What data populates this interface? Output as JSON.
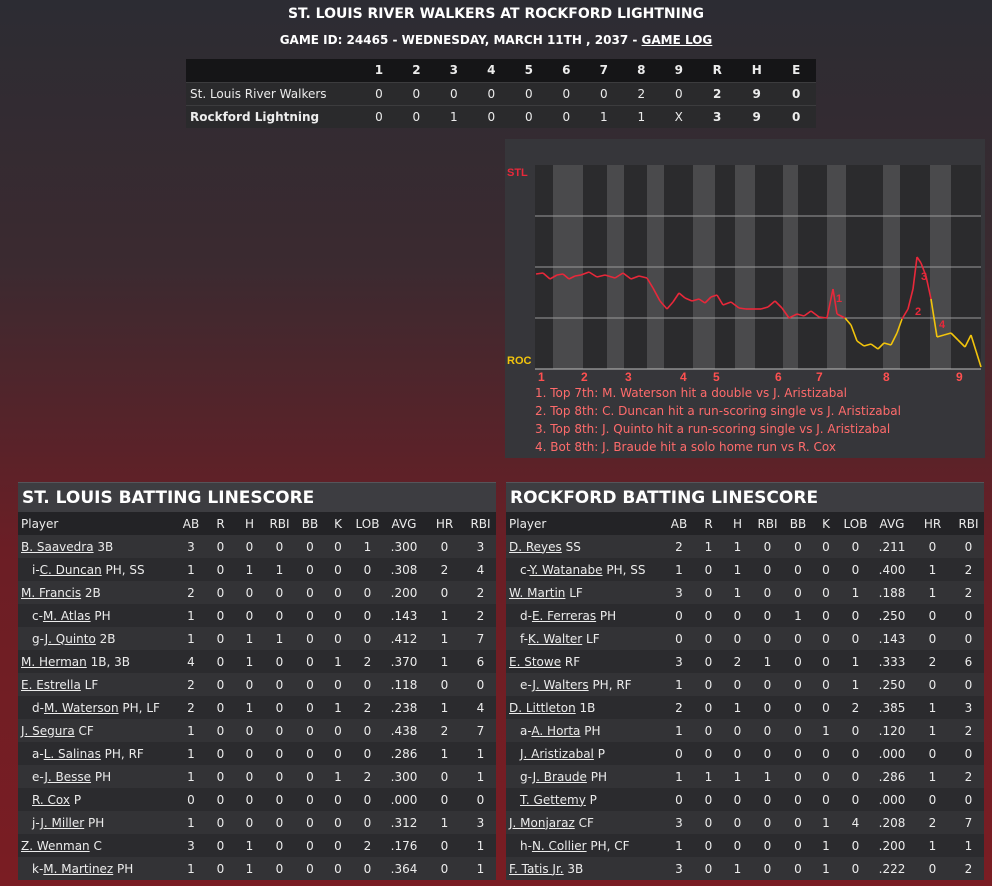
{
  "header": {
    "title": "ST. LOUIS RIVER WALKERS AT ROCKFORD LIGHTNING",
    "subtitle": "GAME ID: 24465 - WEDNESDAY, MARCH 11TH , 2037 -",
    "game_log_link": "GAME LOG"
  },
  "linescore": {
    "columns": [
      "1",
      "2",
      "3",
      "4",
      "5",
      "6",
      "7",
      "8",
      "9",
      "R",
      "H",
      "E"
    ],
    "rows": [
      {
        "team": "St. Louis River Walkers",
        "innings": [
          "0",
          "0",
          "0",
          "0",
          "0",
          "0",
          "0",
          "2",
          "0"
        ],
        "R": "2",
        "H": "9",
        "E": "0"
      },
      {
        "team": "Rockford Lightning",
        "innings": [
          "0",
          "0",
          "1",
          "0",
          "0",
          "0",
          "1",
          "1",
          "X"
        ],
        "R": "3",
        "H": "9",
        "E": "0"
      }
    ]
  },
  "win_prob": {
    "top_label": "STL",
    "bottom_label": "ROC",
    "innings": [
      "1",
      "2",
      "3",
      "4",
      "5",
      "6",
      "7",
      "8",
      "9"
    ],
    "markers": [
      "1",
      "2",
      "3",
      "4"
    ],
    "notes": [
      "1. Top 7th: M. Waterson hit a double vs J. Aristizabal",
      "2. Top 8th: C. Duncan hit a run-scoring single vs J. Aristizabal",
      "3. Top 8th: J. Quinto hit a run-scoring single vs J. Aristizabal",
      "4. Bot 8th: J. Braude hit a solo home run vs R. Cox"
    ]
  },
  "batting_columns": [
    "Player",
    "AB",
    "R",
    "H",
    "RBI",
    "BB",
    "K",
    "LOB",
    "AVG",
    "HR",
    "RBI"
  ],
  "stl_batting": {
    "title": "ST. LOUIS BATTING LINESCORE",
    "rows": [
      {
        "prefix": "",
        "name": "B. Saavedra",
        "pos": "3B",
        "sub": false,
        "stats": [
          "3",
          "0",
          "0",
          "0",
          "0",
          "0",
          "1",
          ".300",
          "0",
          "3"
        ]
      },
      {
        "prefix": "i-",
        "name": "C. Duncan",
        "pos": "PH, SS",
        "sub": true,
        "stats": [
          "1",
          "0",
          "1",
          "1",
          "0",
          "0",
          "0",
          ".308",
          "2",
          "4"
        ]
      },
      {
        "prefix": "",
        "name": "M. Francis",
        "pos": "2B",
        "sub": false,
        "stats": [
          "2",
          "0",
          "0",
          "0",
          "0",
          "0",
          "0",
          ".200",
          "0",
          "2"
        ]
      },
      {
        "prefix": "c-",
        "name": "M. Atlas",
        "pos": "PH",
        "sub": true,
        "stats": [
          "1",
          "0",
          "0",
          "0",
          "0",
          "0",
          "0",
          ".143",
          "1",
          "2"
        ]
      },
      {
        "prefix": "g-",
        "name": "J. Quinto",
        "pos": "2B",
        "sub": true,
        "stats": [
          "1",
          "0",
          "1",
          "1",
          "0",
          "0",
          "0",
          ".412",
          "1",
          "7"
        ]
      },
      {
        "prefix": "",
        "name": "M. Herman",
        "pos": "1B, 3B",
        "sub": false,
        "stats": [
          "4",
          "0",
          "1",
          "0",
          "0",
          "1",
          "2",
          ".370",
          "1",
          "6"
        ]
      },
      {
        "prefix": "",
        "name": "E. Estrella",
        "pos": "LF",
        "sub": false,
        "stats": [
          "2",
          "0",
          "0",
          "0",
          "0",
          "0",
          "0",
          ".118",
          "0",
          "0"
        ]
      },
      {
        "prefix": "d-",
        "name": "M. Waterson",
        "pos": "PH, LF",
        "sub": true,
        "stats": [
          "2",
          "0",
          "1",
          "0",
          "0",
          "1",
          "2",
          ".238",
          "1",
          "4"
        ]
      },
      {
        "prefix": "",
        "name": "J. Segura",
        "pos": "CF",
        "sub": false,
        "stats": [
          "1",
          "0",
          "0",
          "0",
          "0",
          "0",
          "0",
          ".438",
          "2",
          "7"
        ]
      },
      {
        "prefix": "a-",
        "name": "L. Salinas",
        "pos": "PH, RF",
        "sub": true,
        "stats": [
          "1",
          "0",
          "0",
          "0",
          "0",
          "0",
          "0",
          ".286",
          "1",
          "1"
        ]
      },
      {
        "prefix": "e-",
        "name": "J. Besse",
        "pos": "PH",
        "sub": true,
        "stats": [
          "1",
          "0",
          "0",
          "0",
          "0",
          "1",
          "2",
          ".300",
          "0",
          "1"
        ]
      },
      {
        "prefix": "",
        "name": "R. Cox",
        "pos": "P",
        "sub": true,
        "stats": [
          "0",
          "0",
          "0",
          "0",
          "0",
          "0",
          "0",
          ".000",
          "0",
          "0"
        ]
      },
      {
        "prefix": "j-",
        "name": "J. Miller",
        "pos": "PH",
        "sub": true,
        "stats": [
          "1",
          "0",
          "0",
          "0",
          "0",
          "0",
          "0",
          ".312",
          "1",
          "3"
        ]
      },
      {
        "prefix": "",
        "name": "Z. Wenman",
        "pos": "C",
        "sub": false,
        "stats": [
          "3",
          "0",
          "1",
          "0",
          "0",
          "0",
          "2",
          ".176",
          "0",
          "1"
        ]
      },
      {
        "prefix": "k-",
        "name": "M. Martinez",
        "pos": "PH",
        "sub": true,
        "stats": [
          "1",
          "0",
          "1",
          "0",
          "0",
          "0",
          "0",
          ".364",
          "0",
          "1"
        ]
      }
    ]
  },
  "roc_batting": {
    "title": "ROCKFORD BATTING LINESCORE",
    "rows": [
      {
        "prefix": "",
        "name": "D. Reyes",
        "pos": "SS",
        "sub": false,
        "stats": [
          "2",
          "1",
          "1",
          "0",
          "0",
          "0",
          "0",
          ".211",
          "0",
          "0"
        ]
      },
      {
        "prefix": "c-",
        "name": "Y. Watanabe",
        "pos": "PH, SS",
        "sub": true,
        "stats": [
          "1",
          "0",
          "1",
          "0",
          "0",
          "0",
          "0",
          ".400",
          "1",
          "2"
        ]
      },
      {
        "prefix": "",
        "name": "W. Martin",
        "pos": "LF",
        "sub": false,
        "stats": [
          "3",
          "0",
          "1",
          "0",
          "0",
          "0",
          "1",
          ".188",
          "1",
          "2"
        ]
      },
      {
        "prefix": "d-",
        "name": "E. Ferreras",
        "pos": "PH",
        "sub": true,
        "stats": [
          "0",
          "0",
          "0",
          "0",
          "1",
          "0",
          "0",
          ".250",
          "0",
          "0"
        ]
      },
      {
        "prefix": "f-",
        "name": "K. Walter",
        "pos": "LF",
        "sub": true,
        "stats": [
          "0",
          "0",
          "0",
          "0",
          "0",
          "0",
          "0",
          ".143",
          "0",
          "0"
        ]
      },
      {
        "prefix": "",
        "name": "E. Stowe",
        "pos": "RF",
        "sub": false,
        "stats": [
          "3",
          "0",
          "2",
          "1",
          "0",
          "0",
          "1",
          ".333",
          "2",
          "6"
        ]
      },
      {
        "prefix": "e-",
        "name": "J. Walters",
        "pos": "PH, RF",
        "sub": true,
        "stats": [
          "1",
          "0",
          "0",
          "0",
          "0",
          "0",
          "1",
          ".250",
          "0",
          "0"
        ]
      },
      {
        "prefix": "",
        "name": "D. Littleton",
        "pos": "1B",
        "sub": false,
        "stats": [
          "2",
          "0",
          "1",
          "0",
          "0",
          "0",
          "2",
          ".385",
          "1",
          "3"
        ]
      },
      {
        "prefix": "a-",
        "name": "A. Horta",
        "pos": "PH",
        "sub": true,
        "stats": [
          "1",
          "0",
          "0",
          "0",
          "0",
          "1",
          "0",
          ".120",
          "1",
          "2"
        ]
      },
      {
        "prefix": "",
        "name": "J. Aristizabal",
        "pos": "P",
        "sub": true,
        "stats": [
          "0",
          "0",
          "0",
          "0",
          "0",
          "0",
          "0",
          ".000",
          "0",
          "0"
        ]
      },
      {
        "prefix": "g-",
        "name": "J. Braude",
        "pos": "PH",
        "sub": true,
        "stats": [
          "1",
          "1",
          "1",
          "1",
          "0",
          "0",
          "0",
          ".286",
          "1",
          "2"
        ]
      },
      {
        "prefix": "",
        "name": "T. Gettemy",
        "pos": "P",
        "sub": true,
        "stats": [
          "0",
          "0",
          "0",
          "0",
          "0",
          "0",
          "0",
          ".000",
          "0",
          "0"
        ]
      },
      {
        "prefix": "",
        "name": "J. Monjaraz",
        "pos": "CF",
        "sub": false,
        "stats": [
          "3",
          "0",
          "0",
          "0",
          "0",
          "1",
          "4",
          ".208",
          "2",
          "7"
        ]
      },
      {
        "prefix": "h-",
        "name": "N. Collier",
        "pos": "PH, CF",
        "sub": true,
        "stats": [
          "1",
          "0",
          "0",
          "0",
          "0",
          "1",
          "0",
          ".200",
          "1",
          "1"
        ]
      },
      {
        "prefix": "",
        "name": "F. Tatis Jr.",
        "pos": "3B",
        "sub": false,
        "stats": [
          "3",
          "0",
          "1",
          "0",
          "0",
          "1",
          "0",
          ".222",
          "0",
          "2"
        ]
      }
    ]
  }
}
